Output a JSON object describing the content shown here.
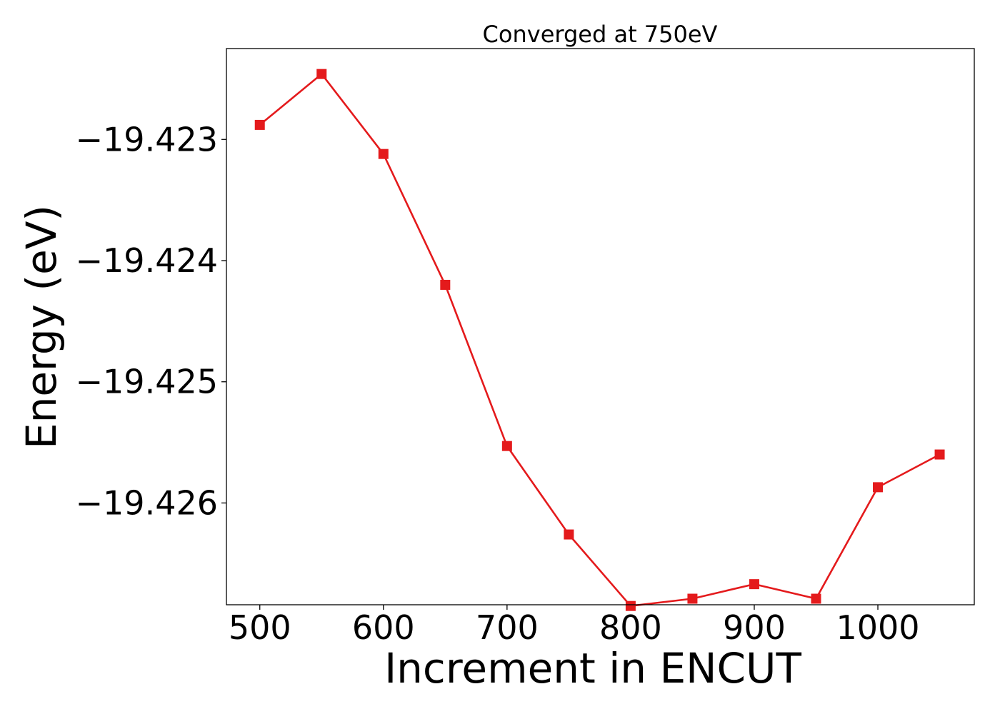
{
  "chart_data": {
    "type": "line",
    "title": "Converged at 750eV",
    "xlabel": "Increment in ENCUT",
    "ylabel": "Energy (eV)",
    "xlim": [
      473,
      1078
    ],
    "ylim": [
      -19.42684,
      -19.42225
    ],
    "xticks": [
      500,
      600,
      700,
      800,
      900,
      1000
    ],
    "xtick_labels": [
      "500",
      "600",
      "700",
      "800",
      "900",
      "1000"
    ],
    "yticks": [
      -19.423,
      -19.424,
      -19.425,
      -19.426
    ],
    "ytick_labels": [
      "−19.423",
      "−19.424",
      "−19.425",
      "−19.426"
    ],
    "grid": false,
    "legend": false,
    "series": [
      {
        "color": "#e41a1c",
        "marker": "square",
        "x": [
          500,
          550,
          600,
          650,
          700,
          750,
          800,
          850,
          900,
          950,
          1000,
          1050
        ],
        "y": [
          -19.42288,
          -19.42246,
          -19.42312,
          -19.4242,
          -19.42553,
          -19.42626,
          -19.42685,
          -19.42679,
          -19.42667,
          -19.42679,
          -19.42587,
          -19.4256
        ]
      }
    ]
  }
}
